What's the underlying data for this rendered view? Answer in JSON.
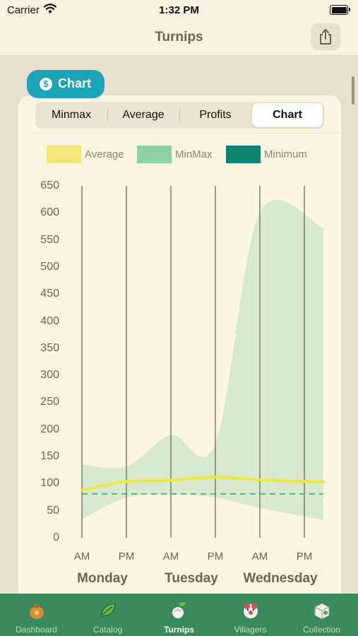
{
  "status": {
    "carrier": "Carrier",
    "time": "1:32 PM"
  },
  "nav": {
    "title": "Turnips",
    "share_icon": "share-icon"
  },
  "section_tag": {
    "label": "Chart",
    "icon": "dollar-coin-icon",
    "color": "#1ba3b7"
  },
  "segments": [
    {
      "label": "Minmax",
      "active": false
    },
    {
      "label": "Average",
      "active": false
    },
    {
      "label": "Profits",
      "active": false
    },
    {
      "label": "Chart",
      "active": true
    }
  ],
  "legend": [
    {
      "label": "Average",
      "color": "#f2e679"
    },
    {
      "label": "MinMax",
      "color": "#8ed0a6"
    },
    {
      "label": "Minimum",
      "color": "#0d8471"
    }
  ],
  "chart_data": {
    "type": "area",
    "categories": [
      "AM",
      "PM",
      "AM",
      "PM",
      "AM",
      "PM"
    ],
    "days": [
      "Monday",
      "Tuesday",
      "Wednesday"
    ],
    "yticks": [
      0,
      50,
      100,
      150,
      200,
      250,
      300,
      350,
      400,
      450,
      500,
      550,
      600,
      650
    ],
    "ylim": [
      0,
      650
    ],
    "series": [
      {
        "name": "MinMax",
        "kind": "band",
        "color": "#d9e9d0",
        "min": [
          34,
          74,
          80,
          74,
          55,
          33
        ],
        "max": [
          136,
          132,
          190,
          174,
          600,
          572
        ]
      },
      {
        "name": "Average",
        "kind": "line",
        "color": "#f2e740",
        "values": [
          88,
          104,
          106,
          112,
          107,
          103
        ]
      },
      {
        "name": "Minimum",
        "kind": "dashed",
        "color": "#20a27f",
        "value": 81
      }
    ],
    "grid": "vertical"
  },
  "tabs": [
    {
      "label": "Dashboard",
      "icon": "bag-icon",
      "active": false
    },
    {
      "label": "Catalog",
      "icon": "leaf-icon",
      "active": false
    },
    {
      "label": "Turnips",
      "icon": "turnip-icon",
      "active": true
    },
    {
      "label": "Villagers",
      "icon": "villager-icon",
      "active": false
    },
    {
      "label": "Collection",
      "icon": "box-icon",
      "active": false
    }
  ]
}
